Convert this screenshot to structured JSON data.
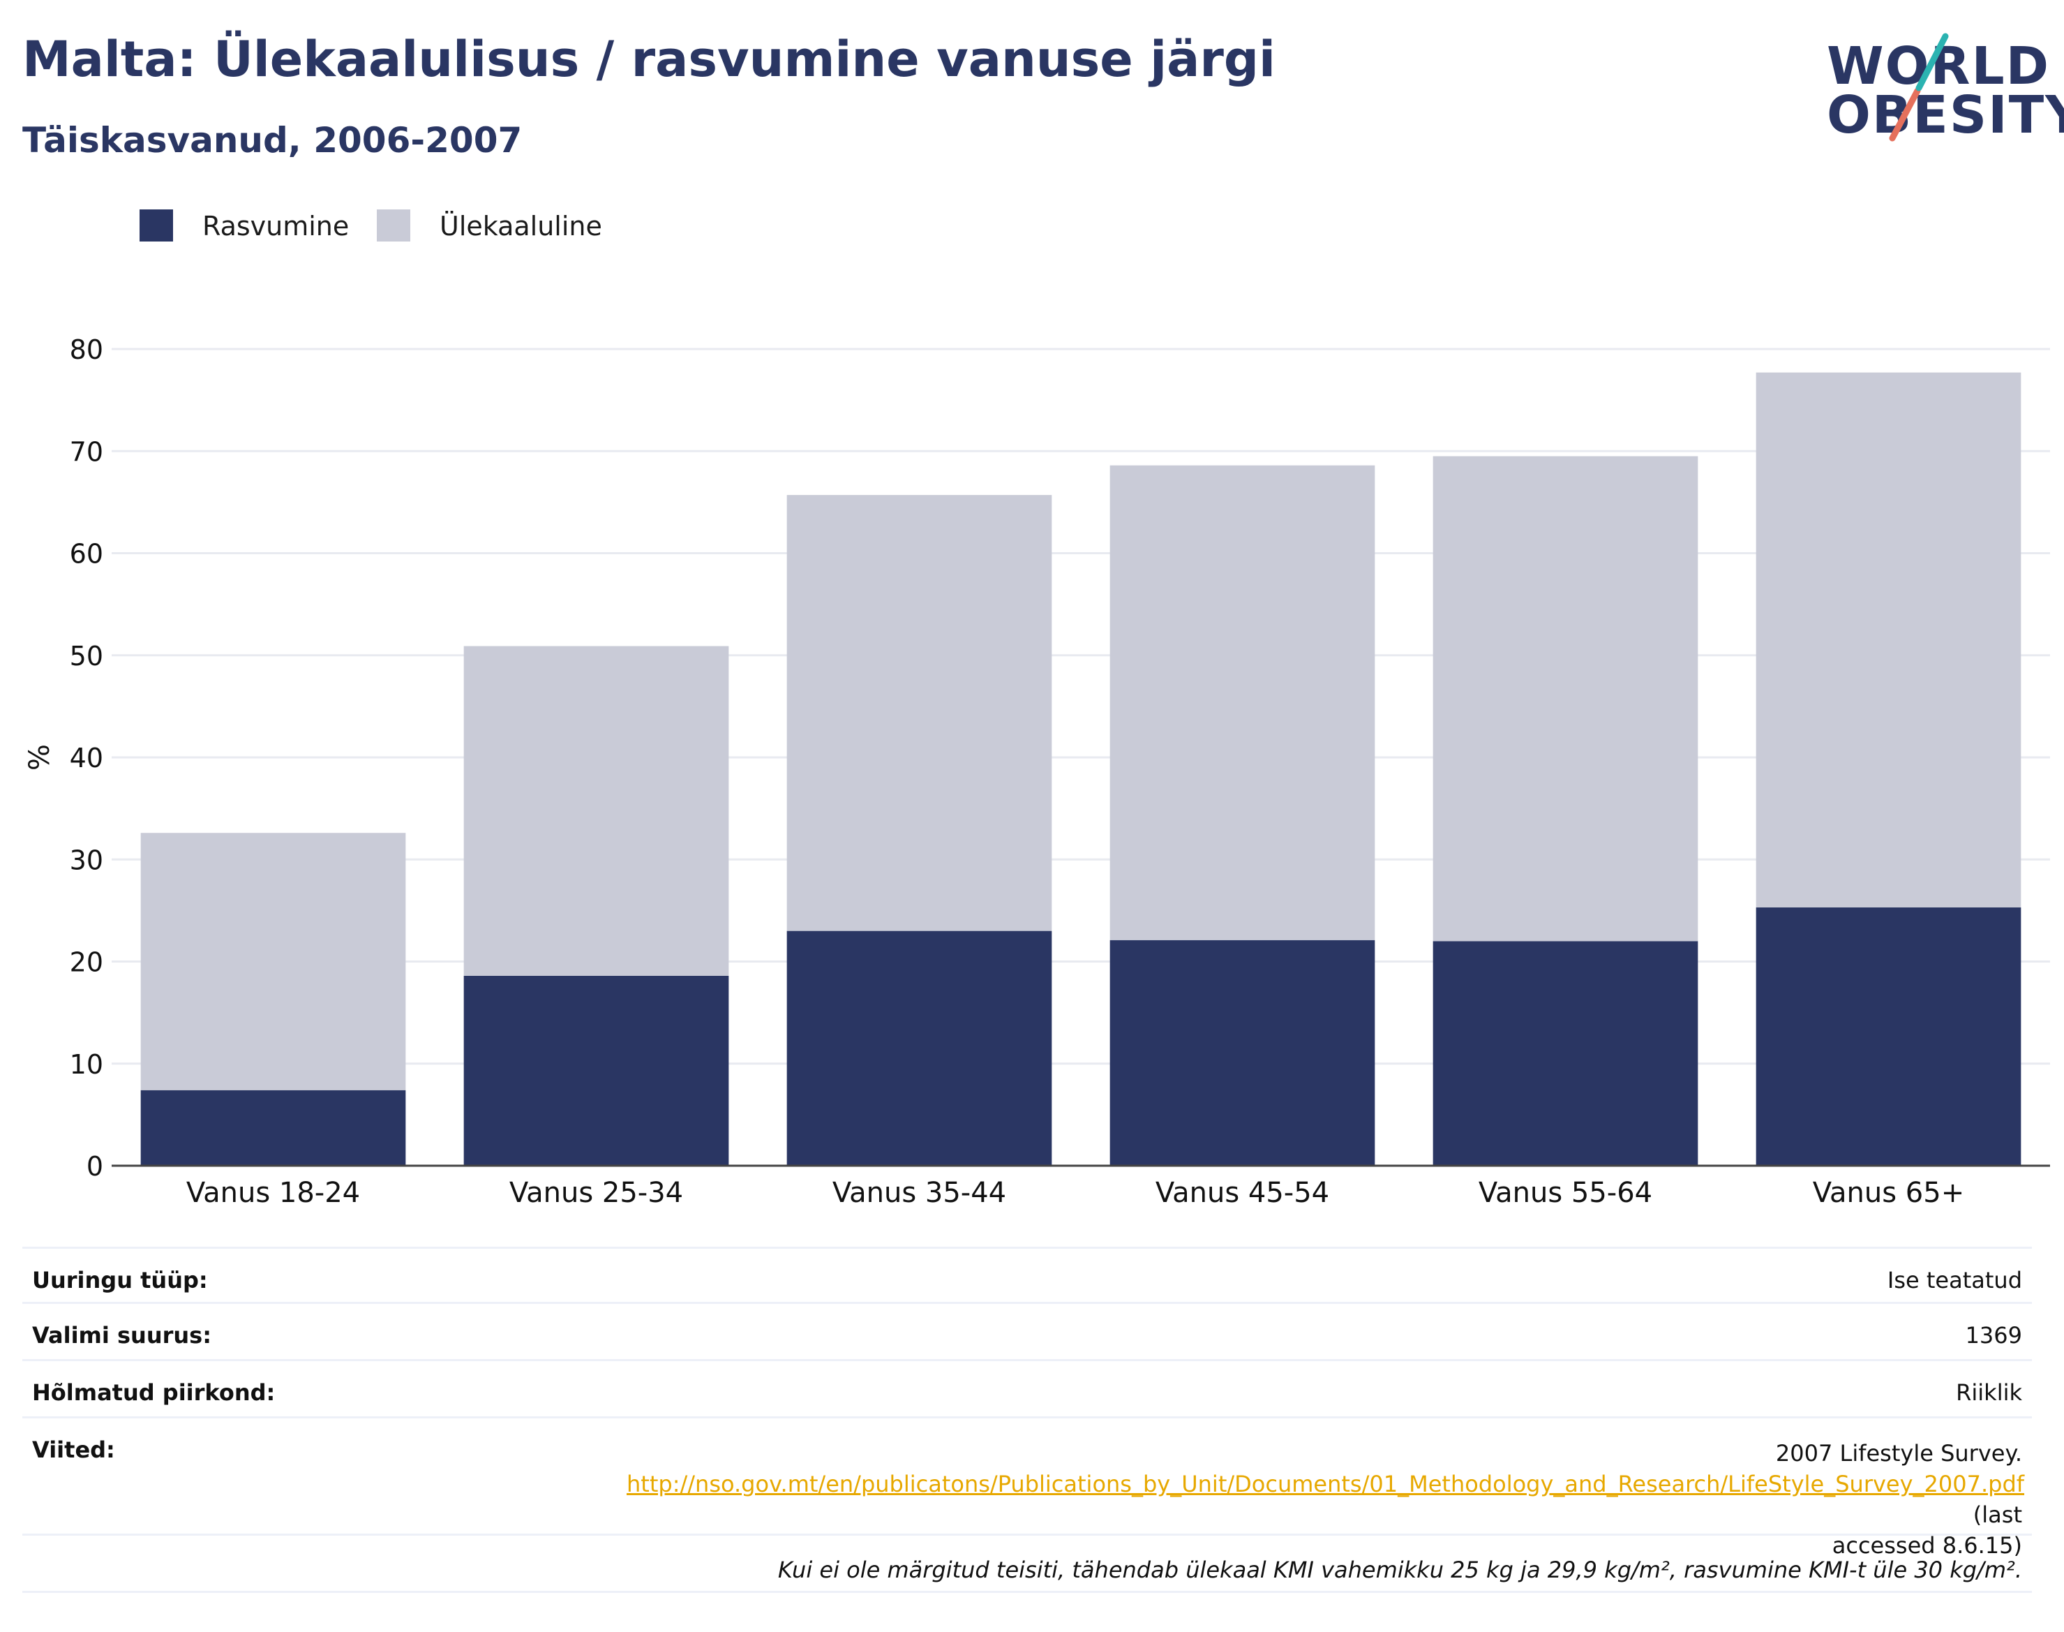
{
  "header": {
    "title": "Malta: Ülekaalulisus / rasvumine vanuse järgi",
    "subtitle": "Täiskasvanud, 2006-2007"
  },
  "logo": {
    "line1": "WORLD",
    "line2": "OBESITY",
    "colors": {
      "text": "#2a3663",
      "slash_top": "#2bb3b1",
      "slash_bottom": "#e5705c"
    }
  },
  "legend": [
    {
      "label": "Rasvumine",
      "color": "#2a3663"
    },
    {
      "label": "Ülekaaluline",
      "color": "#c9cbd7"
    }
  ],
  "chart_data": {
    "type": "bar",
    "stacked": true,
    "categories": [
      "Vanus 18-24",
      "Vanus 25-34",
      "Vanus 35-44",
      "Vanus 45-54",
      "Vanus 55-64",
      "Vanus 65+"
    ],
    "series": [
      {
        "name": "Rasvumine",
        "color": "#2a3663",
        "values": [
          7.4,
          18.6,
          23.0,
          22.1,
          22.0,
          25.3
        ]
      },
      {
        "name": "Ülekaaluline",
        "color": "#c9cbd7",
        "values": [
          25.2,
          32.3,
          42.7,
          46.5,
          47.5,
          52.4
        ]
      }
    ],
    "ylabel": "%",
    "xlabel": "",
    "ylim": [
      0,
      80
    ],
    "yticks": [
      0,
      10,
      20,
      30,
      40,
      50,
      60,
      70,
      80
    ],
    "grid": true,
    "legend_position": "top-left"
  },
  "info": {
    "survey_type_label": "Uuringu tüüp:",
    "survey_type_value": "Ise teatatud",
    "sample_size_label": "Valimi suurus:",
    "sample_size_value": "1369",
    "area_label": "Hõlmatud piirkond:",
    "area_value": "Riiklik",
    "references_label": "Viited:",
    "references_text": "2007 Lifestyle Survey.",
    "references_link": "http://nso.gov.mt/en/publicatons/Publications_by_Unit/Documents/01_Methodology_and_Research/LifeStyle_Survey_2007.pdf",
    "references_access_1": "(last",
    "references_access_2": "accessed 8.6.15)",
    "footnote": "Kui ei ole märgitud teisiti, tähendab ülekaal KMI vahemikku 25 kg ja 29,9 kg/m², rasvumine KMI-t üle 30 kg/m²."
  }
}
